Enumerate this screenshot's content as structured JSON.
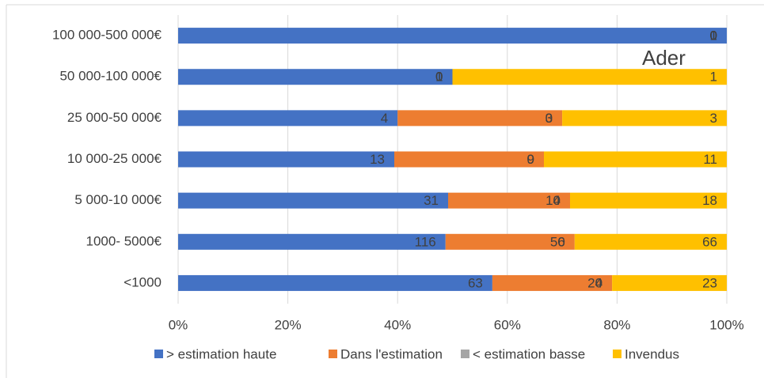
{
  "chart_data": {
    "type": "bar",
    "orientation": "horizontal",
    "stacked": "percent",
    "categories": [
      "100 000-500 000€",
      "50 000-100 000€",
      "25 000-50 000€",
      "10 000-25 000€",
      "5 000-10 000€",
      "1000- 5000€",
      "<1000"
    ],
    "series": [
      {
        "name": "> estimation haute",
        "color": "#4472c4",
        "values": [
          1,
          1,
          4,
          13,
          31,
          116,
          63
        ]
      },
      {
        "name": "Dans l'estimation",
        "color": "#ed7d31",
        "values": [
          0,
          0,
          3,
          9,
          14,
          56,
          24
        ]
      },
      {
        "name": "< estimation  basse",
        "color": "#a5a5a5",
        "values": [
          0,
          0,
          0,
          0,
          0,
          0,
          0
        ]
      },
      {
        "name": "Invendus",
        "color": "#ffc000",
        "values": [
          0,
          1,
          3,
          11,
          18,
          66,
          23
        ]
      }
    ],
    "xlim": [
      0,
      100
    ],
    "xticks": [
      {
        "value": 0,
        "label": "0%"
      },
      {
        "value": 20,
        "label": "20%"
      },
      {
        "value": 40,
        "label": "40%"
      },
      {
        "value": 60,
        "label": "60%"
      },
      {
        "value": 80,
        "label": "80%"
      },
      {
        "value": 100,
        "label": "100%"
      }
    ],
    "grid": true,
    "annotation": "Ader",
    "legend": "bottom"
  }
}
